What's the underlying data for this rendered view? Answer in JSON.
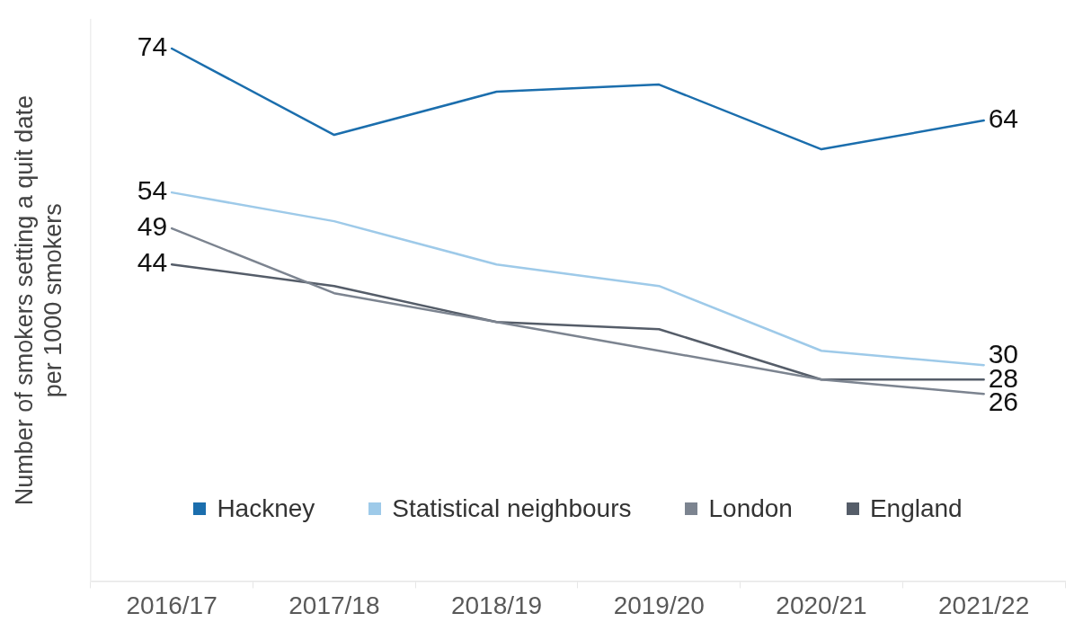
{
  "chart_data": {
    "type": "line",
    "ylabel": "Number of smokers setting a quit date\nper 1000 smokers",
    "categories": [
      "2016/17",
      "2017/18",
      "2018/19",
      "2019/20",
      "2020/21",
      "2021/22"
    ],
    "ylim": [
      0,
      78
    ],
    "tick_labels": "x",
    "legend": "bottom",
    "series": [
      {
        "name": "Hackney",
        "color": "#1b6ead",
        "values": [
          74,
          62,
          68,
          69,
          60,
          64
        ],
        "value_labels": [
          "74",
          null,
          null,
          null,
          null,
          "64"
        ]
      },
      {
        "name": "Statistical neighbours",
        "color": "#9ecae9",
        "values": [
          54,
          50,
          44,
          41,
          32,
          30
        ],
        "value_labels": [
          "54",
          null,
          null,
          null,
          null,
          "30"
        ]
      },
      {
        "name": "London",
        "color": "#7c8490",
        "values": [
          49,
          40,
          36,
          32,
          28,
          26
        ],
        "value_labels": [
          "49",
          null,
          null,
          null,
          null,
          "26"
        ]
      },
      {
        "name": "England",
        "color": "#555d69",
        "values": [
          44,
          41,
          36,
          35,
          28,
          28
        ],
        "value_labels": [
          "44",
          null,
          null,
          null,
          null,
          "28"
        ]
      }
    ]
  }
}
